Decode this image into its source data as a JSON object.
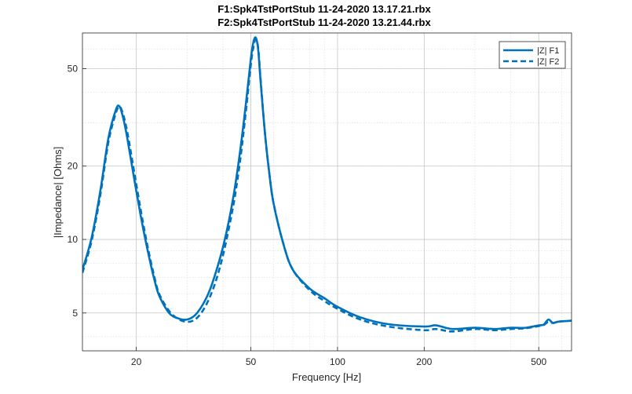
{
  "chart_data": {
    "type": "line",
    "title": [
      "F1:Spk4TstPortStub 11-24-2020 13.17.21.rbx",
      "F2:Spk4TstPortStub 11-24-2020 13.21.44.rbx"
    ],
    "xlabel": "Frequency [Hz]",
    "ylabel": "|Impedance| [Ohms]",
    "xscale": "log",
    "yscale": "log",
    "xlim": [
      13,
      650
    ],
    "ylim": [
      3.5,
      70
    ],
    "xticks": [
      20,
      50,
      100,
      200,
      500
    ],
    "yticks": [
      5,
      10,
      20,
      50
    ],
    "grid": true,
    "minor_grid": true,
    "legend_position": "top-right",
    "color": "#0072BD",
    "series": [
      {
        "name": "|Z| F1",
        "style": "solid",
        "x": [
          13,
          14,
          15,
          16,
          17,
          17.5,
          18,
          18.5,
          19,
          20,
          21,
          22,
          23,
          24,
          26,
          28,
          30,
          32,
          34,
          36,
          38,
          40,
          42,
          44,
          46,
          48,
          50,
          51,
          52,
          53,
          54,
          56,
          58,
          60,
          65,
          70,
          80,
          90,
          100,
          120,
          150,
          200,
          220,
          250,
          300,
          350,
          400,
          450,
          500,
          520,
          540,
          560,
          580,
          600,
          650
        ],
        "y": [
          7.5,
          10.2,
          15.8,
          26.0,
          34.0,
          35.0,
          31.5,
          27.0,
          22.5,
          15.8,
          11.5,
          8.8,
          7.0,
          5.9,
          5.0,
          4.75,
          4.7,
          4.9,
          5.4,
          6.2,
          7.5,
          9.3,
          12.0,
          16.3,
          23.5,
          35.5,
          55.0,
          64.0,
          67.0,
          60.0,
          45.0,
          27.0,
          18.5,
          14.0,
          9.5,
          7.5,
          6.3,
          5.75,
          5.3,
          4.8,
          4.5,
          4.4,
          4.45,
          4.3,
          4.35,
          4.3,
          4.35,
          4.35,
          4.45,
          4.48,
          4.7,
          4.55,
          4.6,
          4.62,
          4.65
        ]
      },
      {
        "name": "|Z| F2",
        "style": "dashed",
        "x": [
          13,
          14,
          15,
          16,
          17,
          17.5,
          18,
          18.5,
          19,
          20,
          21,
          22,
          23,
          24,
          26,
          28,
          30,
          32,
          34,
          36,
          38,
          40,
          42,
          44,
          46,
          48,
          50,
          51,
          52,
          53,
          54,
          56,
          58,
          60,
          65,
          70,
          80,
          90,
          100,
          120,
          150,
          200,
          220,
          250,
          300,
          350,
          400,
          450,
          500,
          520,
          540,
          560,
          580,
          600,
          650
        ],
        "y": [
          7.3,
          9.9,
          15.2,
          25.0,
          33.0,
          35.0,
          32.5,
          28.5,
          24.0,
          16.8,
          12.1,
          9.1,
          7.2,
          6.0,
          5.1,
          4.72,
          4.6,
          4.7,
          5.1,
          5.8,
          6.9,
          8.6,
          11.2,
          15.0,
          21.5,
          33.0,
          52.0,
          61.0,
          66.0,
          61.0,
          46.0,
          27.0,
          18.5,
          14.0,
          9.5,
          7.5,
          6.2,
          5.6,
          5.2,
          4.7,
          4.4,
          4.25,
          4.3,
          4.2,
          4.3,
          4.25,
          4.3,
          4.33,
          4.42,
          4.46,
          4.6,
          4.55,
          4.6,
          4.62,
          4.65
        ]
      }
    ]
  }
}
